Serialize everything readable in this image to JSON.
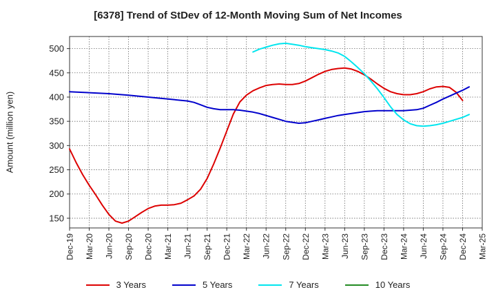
{
  "chart_data": {
    "type": "line",
    "title": "[6378]  Trend of StDev of 12-Month Moving Sum of Net Incomes",
    "ylabel": "Amount (million yen)",
    "xlabel": "",
    "ylim": [
      130,
      525
    ],
    "yticks": [
      150,
      200,
      250,
      300,
      350,
      400,
      450,
      500
    ],
    "x_ticks": [
      "Dec-19",
      "Mar-20",
      "Jun-20",
      "Sep-20",
      "Dec-20",
      "Mar-21",
      "Jun-21",
      "Sep-21",
      "Dec-21",
      "Mar-22",
      "Jun-22",
      "Sep-22",
      "Dec-22",
      "Mar-23",
      "Jun-23",
      "Sep-23",
      "Dec-23",
      "Mar-24",
      "Jun-24",
      "Sep-24",
      "Dec-24",
      "Mar-25"
    ],
    "grid": true,
    "legend_position": "bottom",
    "series": [
      {
        "name": "3 Years",
        "color": "#dd0000",
        "points": [
          [
            "Dec-19",
            293
          ],
          [
            "Jan-20",
            265
          ],
          [
            "Feb-20",
            240
          ],
          [
            "Mar-20",
            218
          ],
          [
            "Apr-20",
            198
          ],
          [
            "May-20",
            177
          ],
          [
            "Jun-20",
            158
          ],
          [
            "Jul-20",
            144
          ],
          [
            "Aug-20",
            140
          ],
          [
            "Sep-20",
            144
          ],
          [
            "Oct-20",
            153
          ],
          [
            "Nov-20",
            162
          ],
          [
            "Dec-20",
            170
          ],
          [
            "Jan-21",
            175
          ],
          [
            "Feb-21",
            177
          ],
          [
            "Mar-21",
            177
          ],
          [
            "Apr-21",
            178
          ],
          [
            "May-21",
            181
          ],
          [
            "Jun-21",
            188
          ],
          [
            "Jul-21",
            196
          ],
          [
            "Aug-21",
            210
          ],
          [
            "Sep-21",
            232
          ],
          [
            "Oct-21",
            262
          ],
          [
            "Nov-21",
            295
          ],
          [
            "Dec-21",
            330
          ],
          [
            "Jan-22",
            365
          ],
          [
            "Feb-22",
            390
          ],
          [
            "Mar-22",
            404
          ],
          [
            "Apr-22",
            413
          ],
          [
            "May-22",
            419
          ],
          [
            "Jun-22",
            424
          ],
          [
            "Jul-22",
            426
          ],
          [
            "Aug-22",
            427
          ],
          [
            "Sep-22",
            426
          ],
          [
            "Oct-22",
            426
          ],
          [
            "Nov-22",
            428
          ],
          [
            "Dec-22",
            433
          ],
          [
            "Jan-23",
            440
          ],
          [
            "Feb-23",
            447
          ],
          [
            "Mar-23",
            453
          ],
          [
            "Apr-23",
            457
          ],
          [
            "May-23",
            459
          ],
          [
            "Jun-23",
            460
          ],
          [
            "Jul-23",
            458
          ],
          [
            "Aug-23",
            453
          ],
          [
            "Sep-23",
            446
          ],
          [
            "Oct-23",
            437
          ],
          [
            "Nov-23",
            427
          ],
          [
            "Dec-23",
            418
          ],
          [
            "Jan-24",
            411
          ],
          [
            "Feb-24",
            407
          ],
          [
            "Mar-24",
            405
          ],
          [
            "Apr-24",
            405
          ],
          [
            "May-24",
            407
          ],
          [
            "Jun-24",
            411
          ],
          [
            "Jul-24",
            417
          ],
          [
            "Aug-24",
            421
          ],
          [
            "Sep-24",
            422
          ],
          [
            "Oct-24",
            420
          ],
          [
            "Nov-24",
            410
          ],
          [
            "Dec-24",
            393
          ]
        ]
      },
      {
        "name": "5 Years",
        "color": "#0000cc",
        "points": [
          [
            "Dec-19",
            411
          ],
          [
            "Mar-20",
            409
          ],
          [
            "Jun-20",
            407
          ],
          [
            "Sep-20",
            404
          ],
          [
            "Dec-20",
            400
          ],
          [
            "Mar-21",
            396
          ],
          [
            "Jun-21",
            392
          ],
          [
            "Jul-21",
            389
          ],
          [
            "Aug-21",
            384
          ],
          [
            "Sep-21",
            379
          ],
          [
            "Oct-21",
            376
          ],
          [
            "Nov-21",
            374
          ],
          [
            "Dec-21",
            374
          ],
          [
            "Jan-22",
            374
          ],
          [
            "Feb-22",
            373
          ],
          [
            "Mar-22",
            371
          ],
          [
            "Apr-22",
            369
          ],
          [
            "May-22",
            366
          ],
          [
            "Jun-22",
            362
          ],
          [
            "Jul-22",
            358
          ],
          [
            "Aug-22",
            354
          ],
          [
            "Sep-22",
            350
          ],
          [
            "Oct-22",
            348
          ],
          [
            "Nov-22",
            346
          ],
          [
            "Dec-22",
            347
          ],
          [
            "Jan-23",
            350
          ],
          [
            "Feb-23",
            353
          ],
          [
            "Mar-23",
            356
          ],
          [
            "Apr-23",
            359
          ],
          [
            "May-23",
            362
          ],
          [
            "Jun-23",
            364
          ],
          [
            "Jul-23",
            366
          ],
          [
            "Aug-23",
            368
          ],
          [
            "Sep-23",
            370
          ],
          [
            "Oct-23",
            371
          ],
          [
            "Nov-23",
            372
          ],
          [
            "Dec-23",
            372
          ],
          [
            "Jan-24",
            372
          ],
          [
            "Feb-24",
            372
          ],
          [
            "Mar-24",
            372
          ],
          [
            "Apr-24",
            373
          ],
          [
            "May-24",
            374
          ],
          [
            "Jun-24",
            377
          ],
          [
            "Jul-24",
            383
          ],
          [
            "Aug-24",
            389
          ],
          [
            "Sep-24",
            396
          ],
          [
            "Oct-24",
            402
          ],
          [
            "Nov-24",
            408
          ],
          [
            "Dec-24",
            414
          ],
          [
            "Jan-25",
            421
          ]
        ]
      },
      {
        "name": "7 Years",
        "color": "#00e5ee",
        "points": [
          [
            "Apr-22",
            493
          ],
          [
            "May-22",
            499
          ],
          [
            "Jun-22",
            503
          ],
          [
            "Jul-22",
            507
          ],
          [
            "Aug-22",
            510
          ],
          [
            "Sep-22",
            511
          ],
          [
            "Oct-22",
            509
          ],
          [
            "Nov-22",
            507
          ],
          [
            "Dec-22",
            504
          ],
          [
            "Jan-23",
            502
          ],
          [
            "Feb-23",
            500
          ],
          [
            "Mar-23",
            498
          ],
          [
            "Apr-23",
            495
          ],
          [
            "May-23",
            491
          ],
          [
            "Jun-23",
            484
          ],
          [
            "Jul-23",
            473
          ],
          [
            "Aug-23",
            461
          ],
          [
            "Sep-23",
            448
          ],
          [
            "Oct-23",
            433
          ],
          [
            "Nov-23",
            417
          ],
          [
            "Dec-23",
            399
          ],
          [
            "Jan-24",
            380
          ],
          [
            "Feb-24",
            364
          ],
          [
            "Mar-24",
            353
          ],
          [
            "Apr-24",
            345
          ],
          [
            "May-24",
            341
          ],
          [
            "Jun-24",
            340
          ],
          [
            "Jul-24",
            341
          ],
          [
            "Aug-24",
            343
          ],
          [
            "Sep-24",
            346
          ],
          [
            "Oct-24",
            350
          ],
          [
            "Nov-24",
            354
          ],
          [
            "Dec-24",
            358
          ],
          [
            "Jan-25",
            364
          ]
        ]
      },
      {
        "name": "10 Years",
        "color": "#228b22",
        "points": []
      }
    ]
  }
}
